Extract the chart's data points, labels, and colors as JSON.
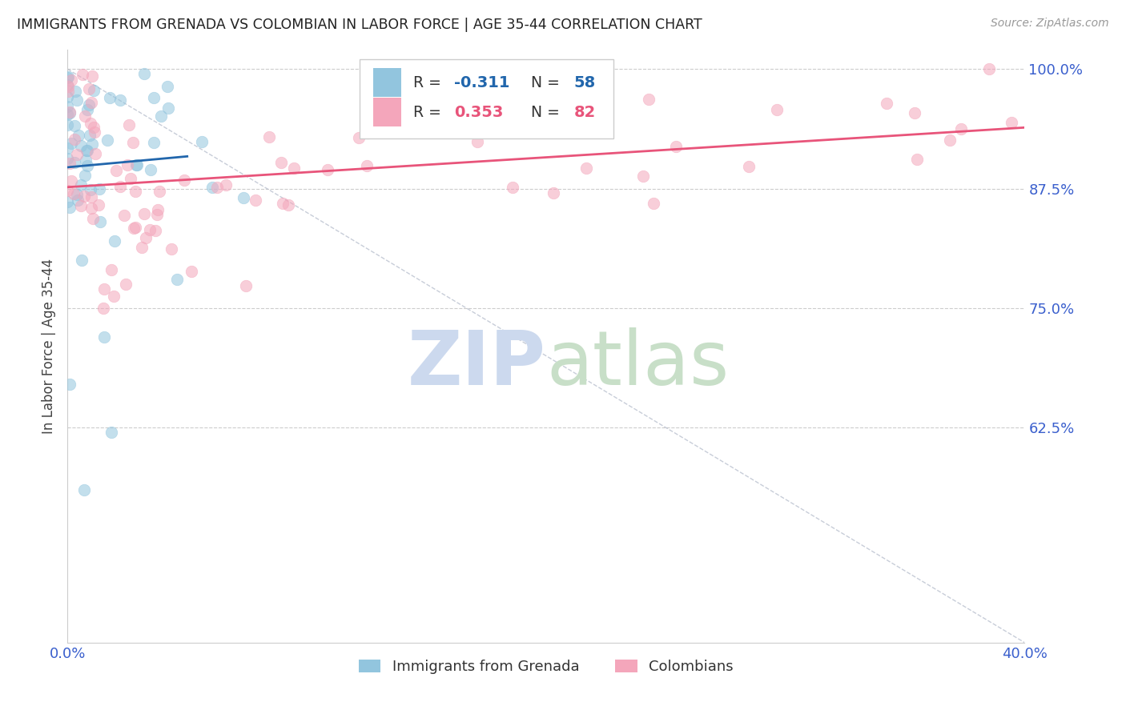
{
  "title": "IMMIGRANTS FROM GRENADA VS COLOMBIAN IN LABOR FORCE | AGE 35-44 CORRELATION CHART",
  "source_text": "Source: ZipAtlas.com",
  "ylabel": "In Labor Force | Age 35-44",
  "xmin": 0.0,
  "xmax": 0.4,
  "ymin": 0.4,
  "ymax": 1.02,
  "yticks": [
    0.625,
    0.75,
    0.875,
    1.0
  ],
  "ytick_labels": [
    "62.5%",
    "75.0%",
    "87.5%",
    "100.0%"
  ],
  "xtick_labels_show": [
    "0.0%",
    "40.0%"
  ],
  "legend_grenada_label": "Immigrants from Grenada",
  "legend_colombian_label": "Colombians",
  "grenada_R": -0.311,
  "grenada_N": 58,
  "colombian_R": 0.353,
  "colombian_N": 82,
  "grenada_color": "#92c5de",
  "colombian_color": "#f4a6bb",
  "grenada_line_color": "#2166ac",
  "colombian_line_color": "#e8547a",
  "tick_label_color": "#3a5fcd",
  "background_color": "#ffffff",
  "watermark_zip_color": "#ccd9ee",
  "watermark_atlas_color": "#c8dfc8",
  "legend_box_color": "#f0f0f0",
  "grenada_legend_sq_color": "#92c5de",
  "colombian_legend_sq_color": "#f4a6bb",
  "R_grenada_color": "#2166ac",
  "N_grenada_color": "#2166ac",
  "R_colombian_color": "#e8547a",
  "N_colombian_color": "#e8547a"
}
